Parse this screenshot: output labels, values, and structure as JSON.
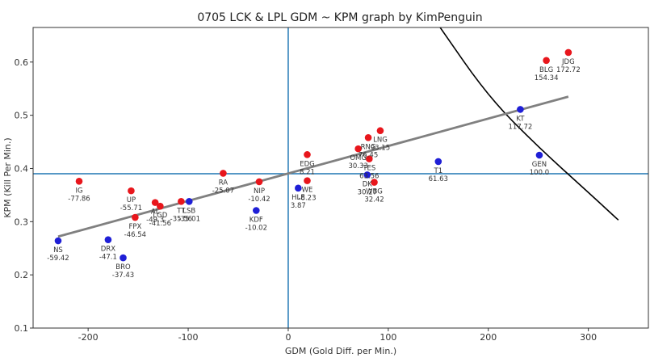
{
  "chart_data": {
    "type": "scatter",
    "title": "0705 LCK & LPL GDM ~ KPM graph by KimPenguin",
    "xlabel": "GDM (Gold Diff. per Min.)",
    "ylabel": "KPM (Kill Per Min.)",
    "xlim": [
      -255,
      360
    ],
    "ylim": [
      0.1,
      0.665
    ],
    "xticks": [
      -200,
      -100,
      0,
      100,
      200,
      300
    ],
    "yticks": [
      0.1,
      0.2,
      0.3,
      0.4,
      0.5,
      0.6
    ],
    "grid": false,
    "reference_lines": {
      "x": 0,
      "y": 0.39
    },
    "trend_line": {
      "x": [
        -230,
        280
      ],
      "y": [
        0.272,
        0.535
      ]
    },
    "curve": {
      "note": "",
      "points": [
        [
          150,
          0.67
        ],
        [
          200,
          0.535
        ],
        [
          250,
          0.44
        ],
        [
          300,
          0.355
        ],
        [
          330,
          0.303
        ]
      ]
    },
    "colors": {
      "LPL": "#e8161c",
      "LCK": "#1f1fd6",
      "axis_line": "#1f77b4",
      "trend": "#808080",
      "curve": "#000000"
    },
    "series": [
      {
        "name": "LPL",
        "points": [
          {
            "team": "JDG",
            "label": "172.72",
            "x": 280,
            "y": 0.618
          },
          {
            "team": "BLG",
            "label": "154.34",
            "x": 258,
            "y": 0.603
          },
          {
            "team": "LNG",
            "label": "93.15",
            "x": 92,
            "y": 0.471
          },
          {
            "team": "RNG",
            "label": "76.45",
            "x": 80,
            "y": 0.458
          },
          {
            "team": "OMG",
            "label": "30.33",
            "x": 70,
            "y": 0.437
          },
          {
            "team": "TES",
            "label": "63.56",
            "x": 81,
            "y": 0.418
          },
          {
            "team": "WBG",
            "label": "32.42",
            "x": 86,
            "y": 0.374
          },
          {
            "team": "EDG",
            "label": "8.21",
            "x": 19,
            "y": 0.426
          },
          {
            "team": "WE",
            "label": "-8.23",
            "x": 19,
            "y": 0.377
          },
          {
            "team": "IG",
            "label": "-77.86",
            "x": -209,
            "y": 0.376
          },
          {
            "team": "UP",
            "label": "-55.71",
            "x": -157,
            "y": 0.358
          },
          {
            "team": "FPX",
            "label": "-46.54",
            "x": -153,
            "y": 0.308
          },
          {
            "team": "AL",
            "label": "-49.3",
            "x": -133,
            "y": 0.336
          },
          {
            "team": "RA",
            "label": "-25.07",
            "x": -65,
            "y": 0.391
          },
          {
            "team": "NIP",
            "label": "-10.42",
            "x": -29,
            "y": 0.375
          },
          {
            "team": "TT",
            "label": "-35.56",
            "x": -107,
            "y": 0.338
          },
          {
            "team": "LGD",
            "label": "-41.56",
            "x": -128,
            "y": 0.329
          }
        ]
      },
      {
        "name": "LCK",
        "points": [
          {
            "team": "KT",
            "label": "117.72",
            "x": 232,
            "y": 0.511
          },
          {
            "team": "GEN",
            "label": "100.0",
            "x": 251,
            "y": 0.425
          },
          {
            "team": "T1",
            "label": "61.63",
            "x": 150,
            "y": 0.413
          },
          {
            "team": "DK",
            "label": "30.27",
            "x": 79,
            "y": 0.388
          },
          {
            "team": "HLE",
            "label": "3.87",
            "x": 10,
            "y": 0.363
          },
          {
            "team": "KDF",
            "label": "-10.02",
            "x": -32,
            "y": 0.321
          },
          {
            "team": "LSB",
            "label": "-35.01",
            "x": -99,
            "y": 0.338
          },
          {
            "team": "DRX",
            "label": "-47.1",
            "x": -180,
            "y": 0.266
          },
          {
            "team": "NS",
            "label": "-59.42",
            "x": -230,
            "y": 0.264
          },
          {
            "team": "BRO",
            "label": "-37.43",
            "x": -165,
            "y": 0.232
          }
        ]
      }
    ]
  }
}
